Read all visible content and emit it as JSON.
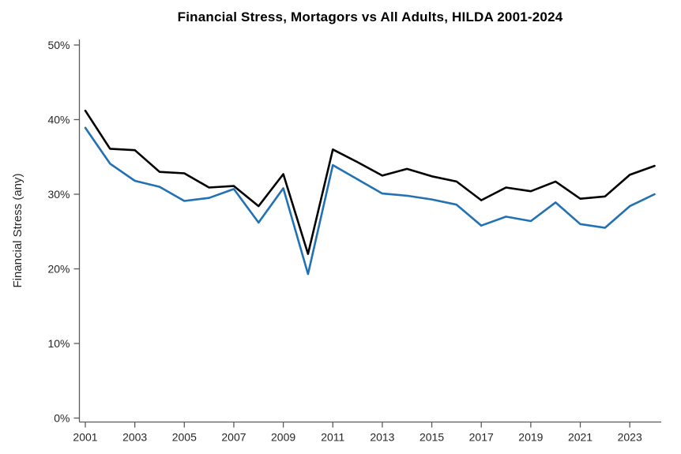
{
  "chart_data": {
    "type": "line",
    "title": "Financial Stress, Mortagors vs All Adults, HILDA 2001-2024",
    "ylabel": "Financial Stress (any)",
    "xlabel": "",
    "x": [
      2001,
      2002,
      2003,
      2004,
      2005,
      2006,
      2007,
      2008,
      2009,
      2010,
      2011,
      2012,
      2013,
      2014,
      2015,
      2016,
      2017,
      2018,
      2019,
      2020,
      2021,
      2022,
      2023,
      2024
    ],
    "series": [
      {
        "name": "Mortagors (black line)",
        "color": "#000000",
        "values": [
          41.2,
          36.1,
          35.9,
          33.0,
          32.8,
          30.9,
          31.1,
          28.4,
          32.7,
          22.0,
          36.0,
          34.3,
          32.5,
          33.4,
          32.4,
          31.7,
          29.2,
          30.9,
          30.4,
          31.7,
          29.4,
          29.7,
          32.6,
          33.8
        ]
      },
      {
        "name": "All Adults (blue line)",
        "color": "#2171b5",
        "values": [
          38.9,
          34.1,
          31.8,
          31.0,
          29.1,
          29.5,
          30.7,
          26.2,
          30.8,
          19.3,
          33.9,
          32.0,
          30.1,
          29.8,
          29.3,
          28.6,
          25.8,
          27.0,
          26.4,
          28.9,
          26.0,
          25.5,
          28.4,
          30.0
        ]
      }
    ],
    "ylim": [
      0,
      50
    ],
    "y_ticks": [
      0,
      10,
      20,
      30,
      40,
      50
    ],
    "y_tick_labels": [
      "0%",
      "10%",
      "20%",
      "30%",
      "40%",
      "50%"
    ],
    "x_tick_years": [
      2001,
      2003,
      2005,
      2007,
      2009,
      2011,
      2013,
      2015,
      2017,
      2019,
      2021,
      2023
    ],
    "grid": false,
    "legend": "none",
    "axis_color": "#5a5a5a",
    "text_color": "#262626",
    "line_width": 2.6
  }
}
